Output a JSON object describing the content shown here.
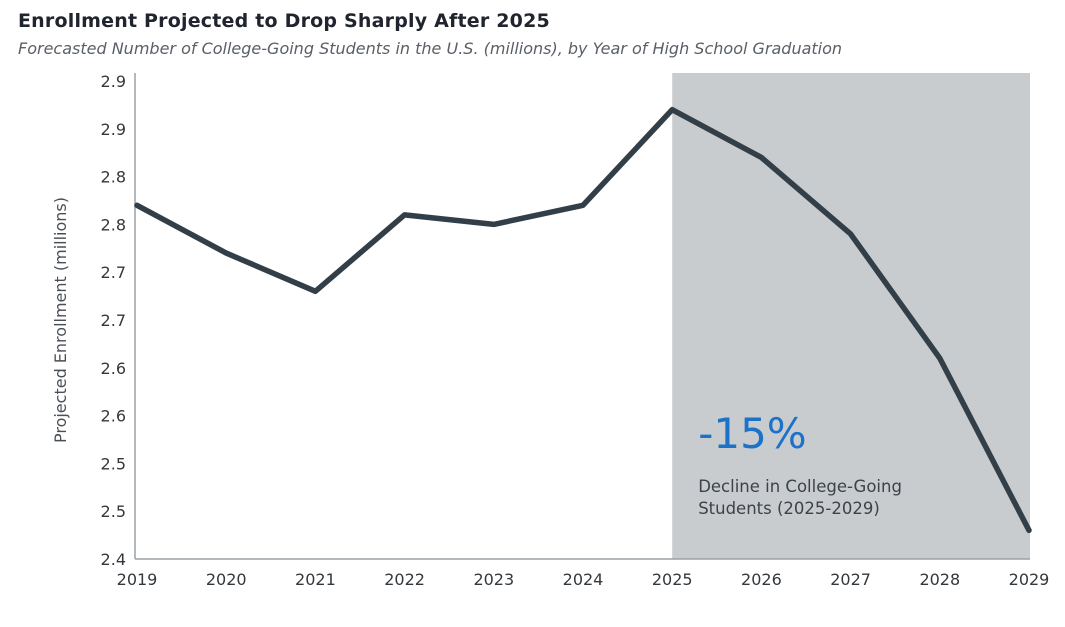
{
  "header": {
    "title": "Enrollment Projected to Drop Sharply After 2025",
    "subtitle": "Forecasted Number of College-Going Students in the U.S. (millions), by Year of High School Graduation"
  },
  "chart_data": {
    "type": "line",
    "title": "Enrollment Projected to Drop Sharply After 2025",
    "subtitle": "Forecasted Number of College-Going Students in the U.S. (millions), by Year of High School Graduation",
    "xlabel": "",
    "ylabel": "Projected Enrollment (millions)",
    "x": [
      2019,
      2020,
      2021,
      2022,
      2023,
      2024,
      2025,
      2026,
      2027,
      2028,
      2029
    ],
    "x_tick_labels": [
      "2019",
      "2020",
      "2021",
      "2022",
      "2023",
      "2024",
      "2025",
      "2026",
      "2027",
      "2028",
      "2029"
    ],
    "values": [
      2.77,
      2.72,
      2.68,
      2.76,
      2.75,
      2.77,
      2.87,
      2.82,
      2.74,
      2.61,
      2.43
    ],
    "ylim": [
      2.4,
      2.9
    ],
    "y_tick_step": 0.05,
    "y_tick_labels_bottom_to_top": [
      "2.4",
      "2.5",
      "2.5",
      "2.6",
      "2.6",
      "2.7",
      "2.7",
      "2.8",
      "2.8",
      "2.9",
      "2.9"
    ],
    "grid": false,
    "legend": false,
    "line_color": "#333f48",
    "axis_color": "#9aa0a6",
    "tick_label_color": "#33383d",
    "axis_label_color": "#4a4f55",
    "shaded_region": {
      "from": 2025,
      "to": 2029,
      "color": "#c9cccf"
    },
    "annotation": {
      "headline": "-15%",
      "headline_color": "#1b72c8",
      "lines": [
        "Decline in College-Going",
        "Students (2025-2029)"
      ],
      "text_color": "#3c4248"
    }
  }
}
